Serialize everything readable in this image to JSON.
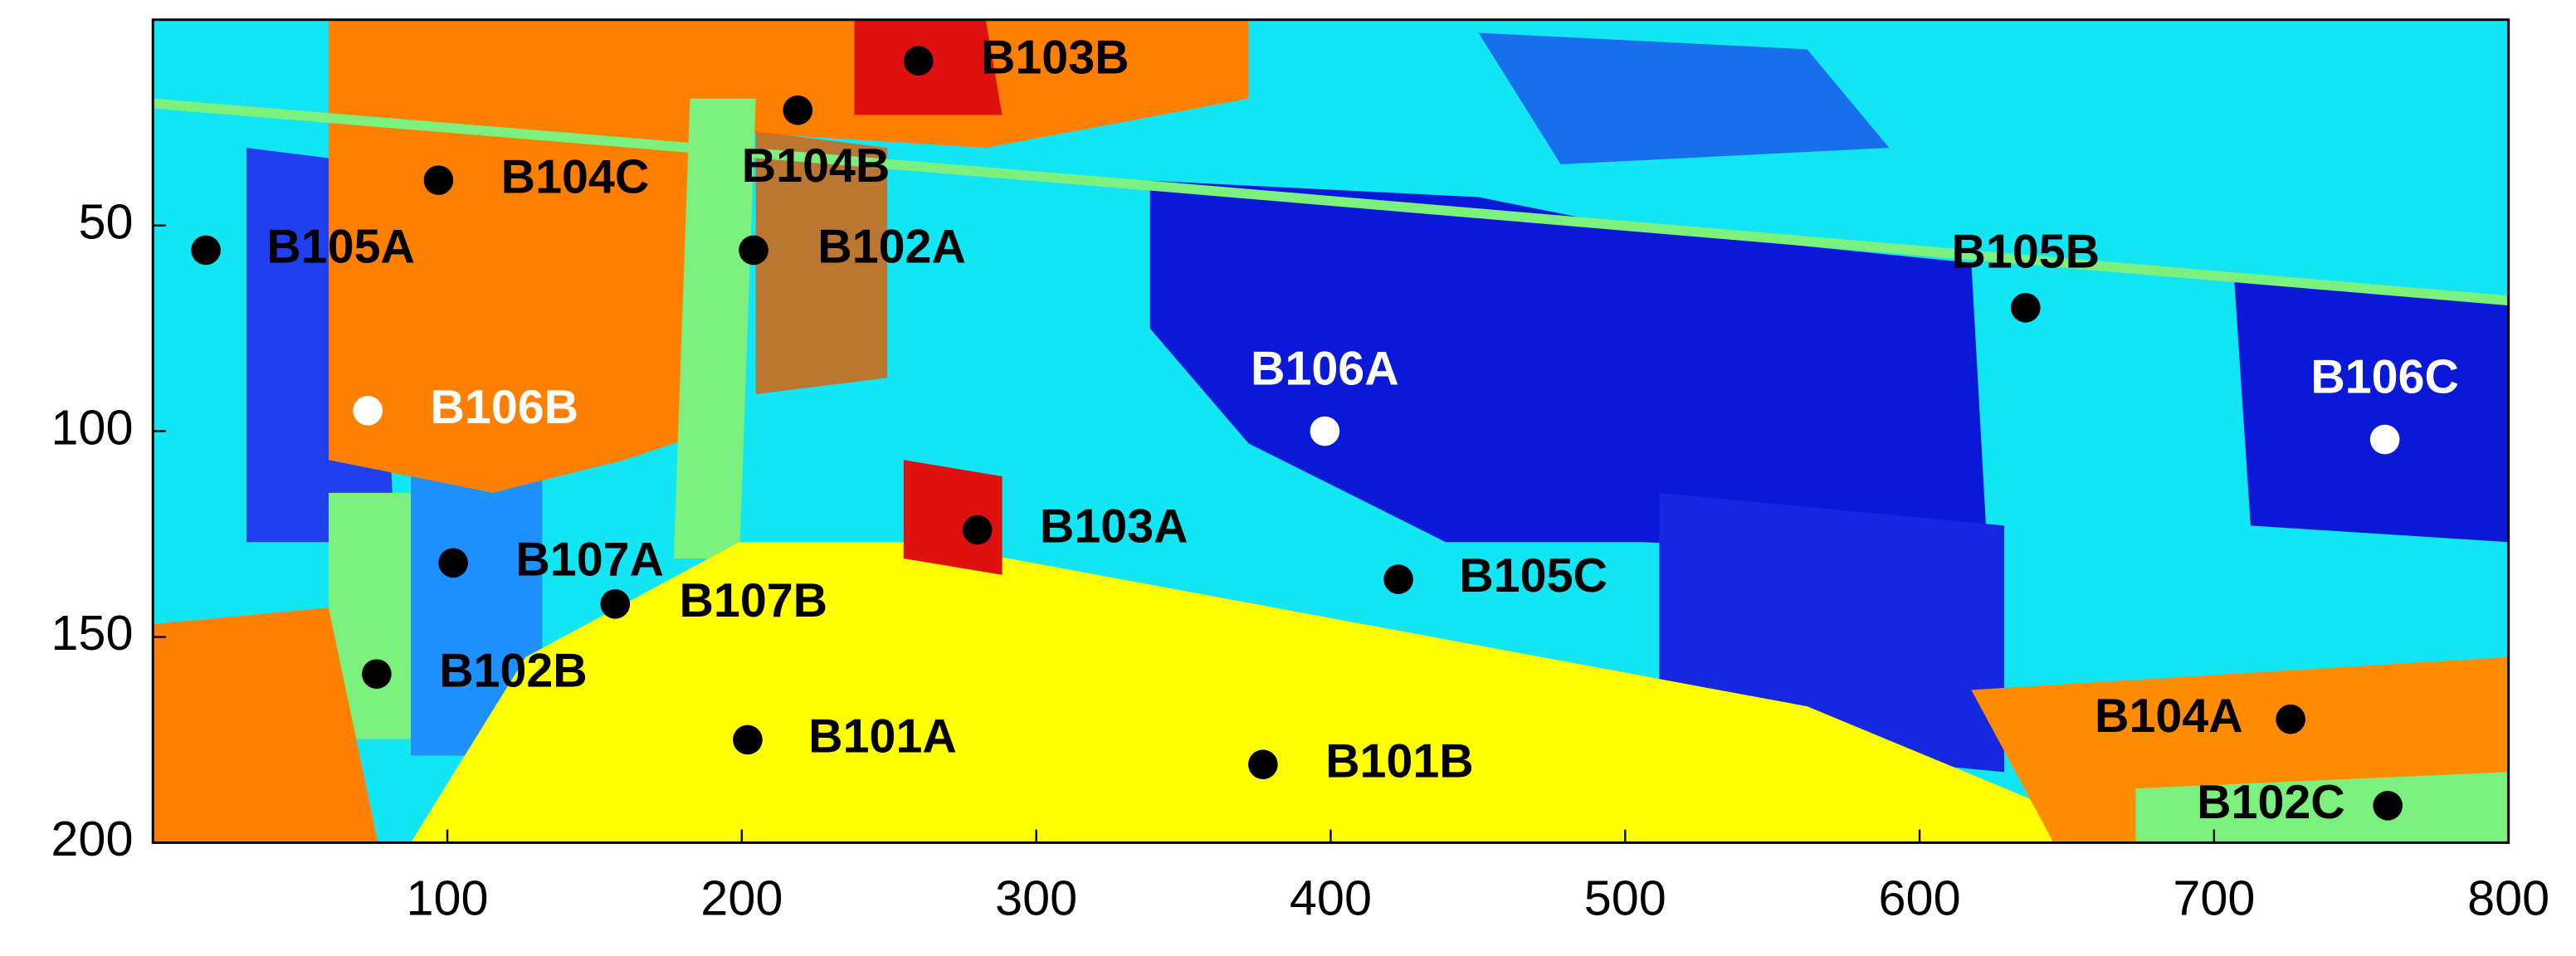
{
  "chart_data": {
    "type": "scatter",
    "xlim": [
      0,
      800
    ],
    "ylim": [
      0,
      200
    ],
    "y_inverted": true,
    "xticks": [
      100,
      200,
      300,
      400,
      500,
      600,
      700,
      800
    ],
    "yticks": [
      50,
      100,
      150,
      200
    ],
    "series": [
      {
        "name": null,
        "points": [
          {
            "name": "B103B",
            "x": 260,
            "y": 10,
            "color": "#000000"
          },
          {
            "name": "B104B",
            "x": 219,
            "y": 22,
            "color": "#000000"
          },
          {
            "name": "B104C",
            "x": 97,
            "y": 39,
            "color": "#000000"
          },
          {
            "name": "B105A",
            "x": 18,
            "y": 56,
            "color": "#000000"
          },
          {
            "name": "B102A",
            "x": 204,
            "y": 56,
            "color": "#000000"
          },
          {
            "name": "B105B",
            "x": 636,
            "y": 70,
            "color": "#000000"
          },
          {
            "name": "B106B",
            "x": 73,
            "y": 95,
            "color": "#ffffff"
          },
          {
            "name": "B106A",
            "x": 398,
            "y": 100,
            "color": "#ffffff"
          },
          {
            "name": "B106C",
            "x": 758,
            "y": 102,
            "color": "#ffffff"
          },
          {
            "name": "B103A",
            "x": 280,
            "y": 124,
            "color": "#000000"
          },
          {
            "name": "B107A",
            "x": 102,
            "y": 132,
            "color": "#000000"
          },
          {
            "name": "B105C",
            "x": 423,
            "y": 136,
            "color": "#000000"
          },
          {
            "name": "B107B",
            "x": 157,
            "y": 142,
            "color": "#000000"
          },
          {
            "name": "B102B",
            "x": 76,
            "y": 159,
            "color": "#000000"
          },
          {
            "name": "B101A",
            "x": 202,
            "y": 175,
            "color": "#000000"
          },
          {
            "name": "B101B",
            "x": 377,
            "y": 181,
            "color": "#000000"
          },
          {
            "name": "B104A",
            "x": 726,
            "y": 170,
            "color": "#000000"
          },
          {
            "name": "B102C",
            "x": 759,
            "y": 191,
            "color": "#000000"
          }
        ]
      }
    ]
  }
}
